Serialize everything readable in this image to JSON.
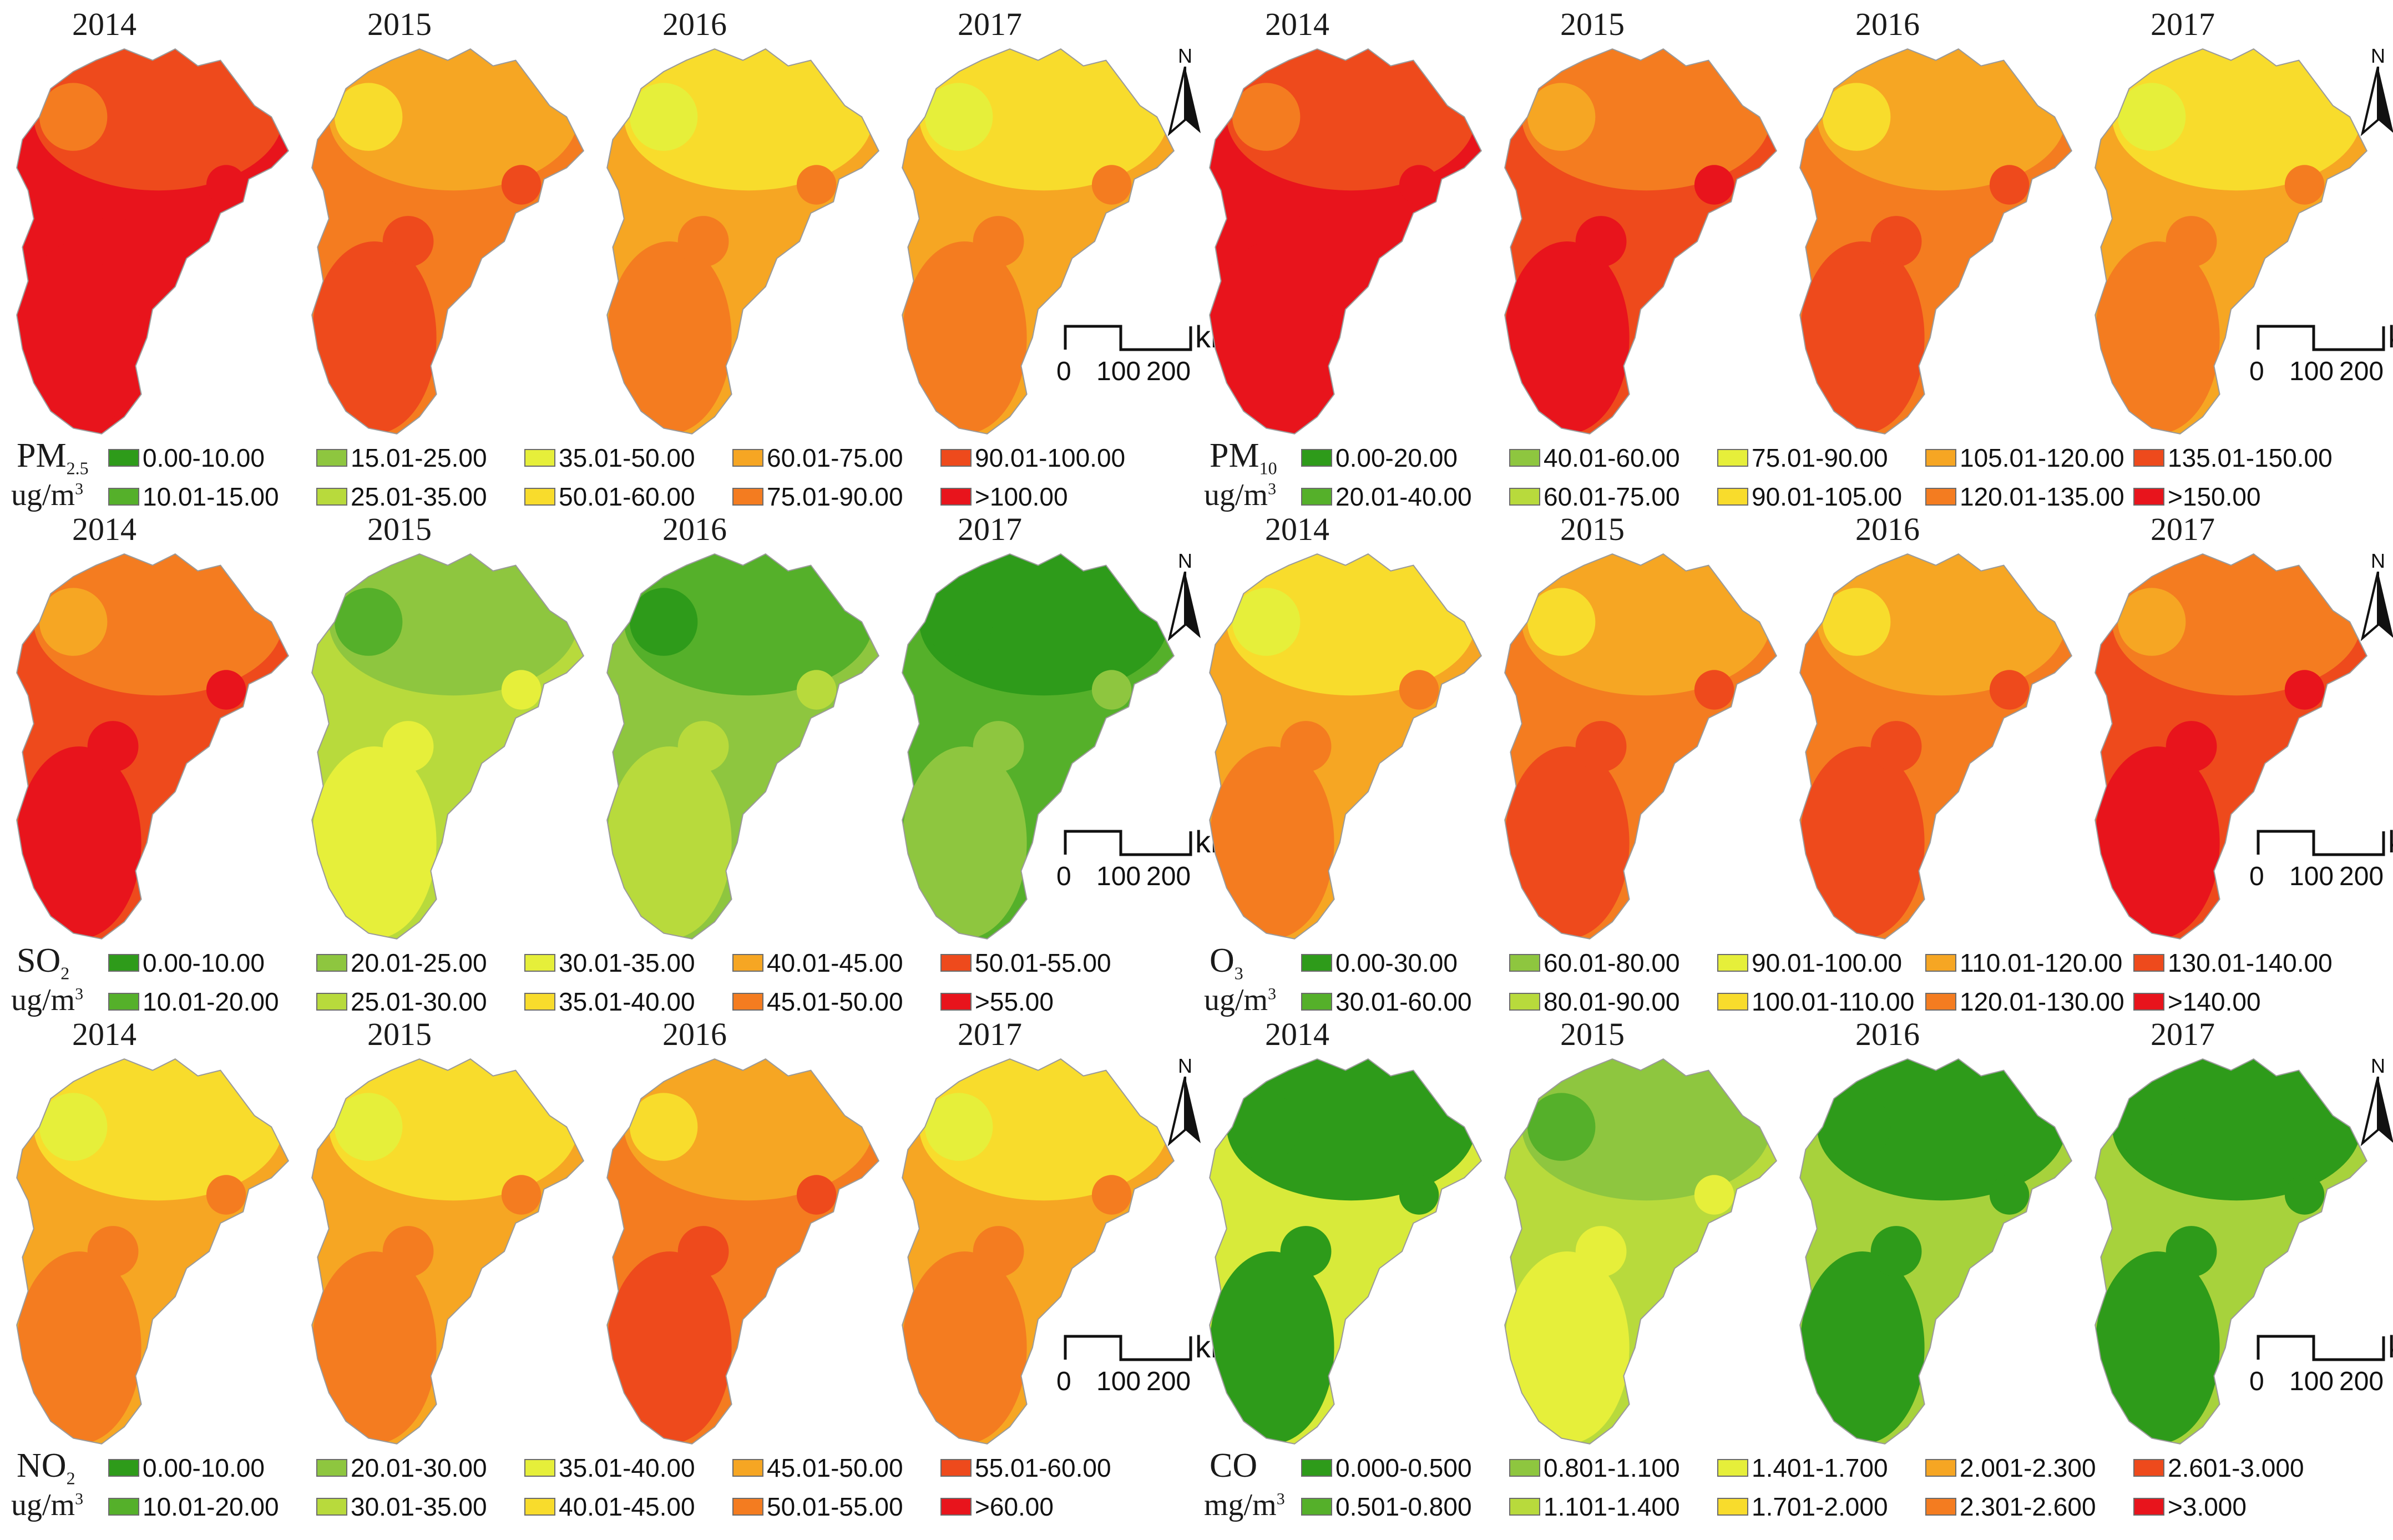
{
  "figure": {
    "years": [
      "2014",
      "2015",
      "2016",
      "2017"
    ],
    "north_label": "N",
    "scale": {
      "ticks": [
        "0",
        "100",
        "200"
      ],
      "unit": "km"
    },
    "panels": [
      {
        "id": "pm25",
        "pollutant": "PM",
        "pollutant_sub": "2.5",
        "unit_base": "ug/m",
        "unit_sup": "3",
        "legend": [
          {
            "label": "0.00-10.00",
            "color": "#2e9b1a"
          },
          {
            "label": "10.01-15.00",
            "color": "#55b02a"
          },
          {
            "label": "15.01-25.00",
            "color": "#8ec63f"
          },
          {
            "label": "25.01-35.00",
            "color": "#b8da3c"
          },
          {
            "label": "35.01-50.00",
            "color": "#e6ef3a"
          },
          {
            "label": "50.01-60.00",
            "color": "#f8dc2c"
          },
          {
            "label": "60.01-75.00",
            "color": "#f6a623"
          },
          {
            "label": "75.01-90.00",
            "color": "#f47c20"
          },
          {
            "label": "90.01-100.00",
            "color": "#ee4a1c"
          },
          {
            "label": ">100.00",
            "color": "#e8141c"
          }
        ],
        "year_fills": [
          "#e8141c",
          "#f47c20",
          "#f6a623",
          "#f6a623"
        ]
      },
      {
        "id": "pm10",
        "pollutant": "PM",
        "pollutant_sub": "10",
        "unit_base": "ug/m",
        "unit_sup": "3",
        "legend": [
          {
            "label": "0.00-20.00",
            "color": "#2e9b1a"
          },
          {
            "label": "20.01-40.00",
            "color": "#55b02a"
          },
          {
            "label": "40.01-60.00",
            "color": "#8ec63f"
          },
          {
            "label": "60.01-75.00",
            "color": "#b8da3c"
          },
          {
            "label": "75.01-90.00",
            "color": "#e6ef3a"
          },
          {
            "label": "90.01-105.00",
            "color": "#f8dc2c"
          },
          {
            "label": "105.01-120.00",
            "color": "#f6a623"
          },
          {
            "label": "120.01-135.00",
            "color": "#f47c20"
          },
          {
            "label": "135.01-150.00",
            "color": "#ee4a1c"
          },
          {
            "label": ">150.00",
            "color": "#e8141c"
          }
        ],
        "year_fills": [
          "#e8141c",
          "#ee4a1c",
          "#f47c20",
          "#f6a623"
        ]
      },
      {
        "id": "so2",
        "pollutant": "SO",
        "pollutant_sub": "2",
        "unit_base": "ug/m",
        "unit_sup": "3",
        "legend": [
          {
            "label": "0.00-10.00",
            "color": "#2e9b1a"
          },
          {
            "label": "10.01-20.00",
            "color": "#55b02a"
          },
          {
            "label": "20.01-25.00",
            "color": "#8ec63f"
          },
          {
            "label": "25.01-30.00",
            "color": "#b8da3c"
          },
          {
            "label": "30.01-35.00",
            "color": "#e6ef3a"
          },
          {
            "label": "35.01-40.00",
            "color": "#f8dc2c"
          },
          {
            "label": "40.01-45.00",
            "color": "#f6a623"
          },
          {
            "label": "45.01-50.00",
            "color": "#f47c20"
          },
          {
            "label": "50.01-55.00",
            "color": "#ee4a1c"
          },
          {
            "label": ">55.00",
            "color": "#e8141c"
          }
        ],
        "year_fills": [
          "#ee4a1c",
          "#b8da3c",
          "#8ec63f",
          "#55b02a"
        ]
      },
      {
        "id": "o3",
        "pollutant": "O",
        "pollutant_sub": "3",
        "unit_base": "ug/m",
        "unit_sup": "3",
        "legend": [
          {
            "label": "0.00-30.00",
            "color": "#2e9b1a"
          },
          {
            "label": "30.01-60.00",
            "color": "#55b02a"
          },
          {
            "label": "60.01-80.00",
            "color": "#8ec63f"
          },
          {
            "label": "80.01-90.00",
            "color": "#b8da3c"
          },
          {
            "label": "90.01-100.00",
            "color": "#e6ef3a"
          },
          {
            "label": "100.01-110.00",
            "color": "#f8dc2c"
          },
          {
            "label": "110.01-120.00",
            "color": "#f6a623"
          },
          {
            "label": "120.01-130.00",
            "color": "#f47c20"
          },
          {
            "label": "130.01-140.00",
            "color": "#ee4a1c"
          },
          {
            "label": ">140.00",
            "color": "#e8141c"
          }
        ],
        "year_fills": [
          "#f6a623",
          "#f47c20",
          "#f47c20",
          "#ee4a1c"
        ]
      },
      {
        "id": "no2",
        "pollutant": "NO",
        "pollutant_sub": "2",
        "unit_base": "ug/m",
        "unit_sup": "3",
        "legend": [
          {
            "label": "0.00-10.00",
            "color": "#2e9b1a"
          },
          {
            "label": "10.01-20.00",
            "color": "#55b02a"
          },
          {
            "label": "20.01-30.00",
            "color": "#8ec63f"
          },
          {
            "label": "30.01-35.00",
            "color": "#b8da3c"
          },
          {
            "label": "35.01-40.00",
            "color": "#e6ef3a"
          },
          {
            "label": "40.01-45.00",
            "color": "#f8dc2c"
          },
          {
            "label": "45.01-50.00",
            "color": "#f6a623"
          },
          {
            "label": "50.01-55.00",
            "color": "#f47c20"
          },
          {
            "label": "55.01-60.00",
            "color": "#ee4a1c"
          },
          {
            "label": ">60.00",
            "color": "#e8141c"
          }
        ],
        "year_fills": [
          "#f6a623",
          "#f6a623",
          "#f47c20",
          "#f6a623"
        ]
      },
      {
        "id": "co",
        "pollutant": "CO",
        "pollutant_sub": "",
        "unit_base": "mg/m",
        "unit_sup": "3",
        "legend": [
          {
            "label": "0.000-0.500",
            "color": "#2e9b1a"
          },
          {
            "label": "0.501-0.800",
            "color": "#55b02a"
          },
          {
            "label": "0.801-1.100",
            "color": "#8ec63f"
          },
          {
            "label": "1.101-1.400",
            "color": "#b8da3c"
          },
          {
            "label": "1.401-1.700",
            "color": "#e6ef3a"
          },
          {
            "label": "1.701-2.000",
            "color": "#f8dc2c"
          },
          {
            "label": "2.001-2.300",
            "color": "#f6a623"
          },
          {
            "label": "2.301-2.600",
            "color": "#f47c20"
          },
          {
            "label": "2.601-3.000",
            "color": "#ee4a1c"
          },
          {
            "label": ">3.000",
            "color": "#e8141c"
          }
        ],
        "year_fills": [
          "#d8ea3a",
          "#b8da3c",
          "#a7d23c",
          "#a7d23c"
        ]
      }
    ]
  }
}
